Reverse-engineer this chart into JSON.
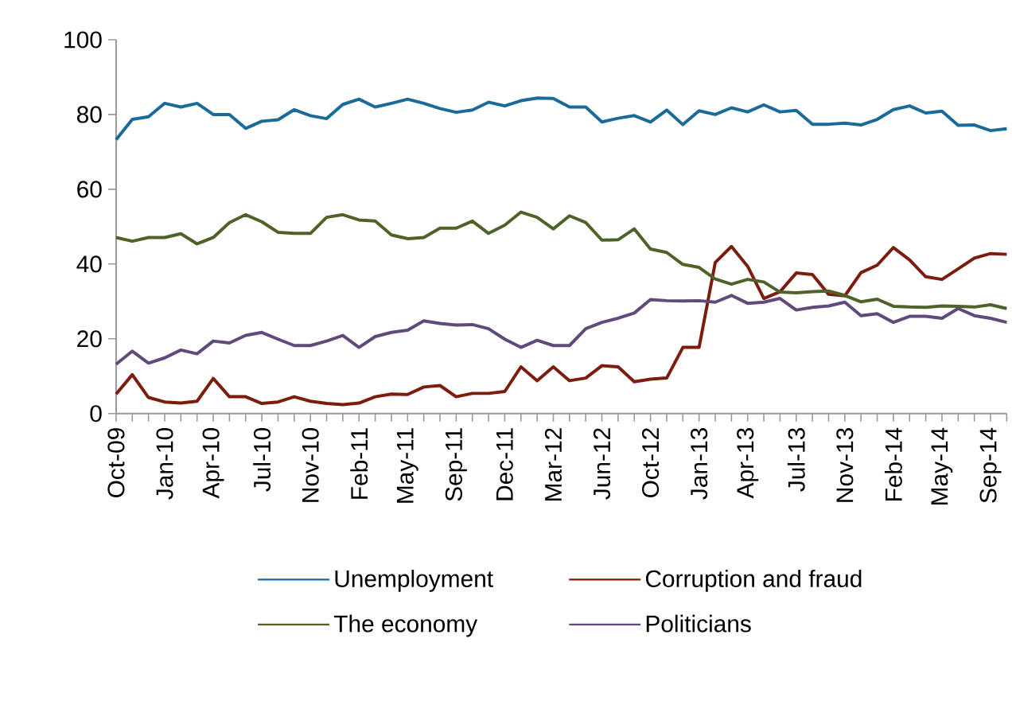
{
  "chart_data": {
    "type": "line",
    "categories": [
      "Oct-09",
      null,
      null,
      "Jan-10",
      null,
      null,
      "Apr-10",
      null,
      null,
      "Jul-10",
      null,
      null,
      "Nov-10",
      null,
      null,
      "Feb-11",
      null,
      null,
      "May-11",
      null,
      null,
      "Sep-11",
      null,
      null,
      "Dec-11",
      null,
      null,
      "Mar-12",
      null,
      null,
      "Jun-12",
      null,
      null,
      "Oct-12",
      null,
      null,
      "Jan-13",
      null,
      null,
      "Apr-13",
      null,
      null,
      "Jul-13",
      null,
      null,
      "Nov-13",
      null,
      null,
      "Feb-14",
      null,
      null,
      "May-14",
      null,
      null,
      "Sep-14",
      null
    ],
    "ylim": [
      0,
      100
    ],
    "yticks": [
      0,
      20,
      40,
      60,
      80,
      100
    ],
    "legend": "bottom",
    "series": [
      {
        "name": "Unemployment",
        "color": "#1a6a9a",
        "values": [
          73.3,
          78.7,
          79.4,
          83,
          82,
          83,
          80,
          80,
          76.3,
          78.2,
          78.6,
          81.3,
          79.7,
          78.9,
          82.7,
          84.1,
          82,
          83,
          84.1,
          83,
          81.6,
          80.6,
          81.2,
          83.3,
          82.3,
          83.7,
          84.4,
          84.3,
          82,
          82,
          78,
          79,
          79.7,
          78,
          81.2,
          77.3,
          81,
          80,
          81.8,
          80.7,
          82.6,
          80.7,
          81.1,
          77.4,
          77.4,
          77.7,
          77.2,
          78.7,
          81.3,
          82.3,
          80.4,
          80.9,
          77.1,
          77.2,
          75.7,
          76.2
        ]
      },
      {
        "name": "Corruption and fraud",
        "color": "#7b1c0c",
        "values": [
          5.2,
          10.4,
          4.3,
          3.1,
          2.8,
          3.3,
          9.4,
          4.5,
          4.5,
          2.7,
          3.1,
          4.5,
          3.3,
          2.7,
          2.4,
          2.8,
          4.5,
          5.2,
          5.1,
          7.1,
          7.5,
          4.5,
          5.4,
          5.4,
          5.9,
          12.5,
          8.8,
          12.5,
          8.8,
          9.5,
          12.8,
          12.5,
          8.5,
          9.2,
          9.5,
          17.7,
          17.7,
          40.4,
          44.7,
          39.4,
          30.8,
          32.6,
          37.6,
          37.2,
          31.9,
          31.5,
          37.7,
          39.7,
          44.4,
          41.1,
          36.6,
          35.9,
          38.7,
          41.6,
          42.8,
          42.6
        ]
      },
      {
        "name": "The economy",
        "color": "#4f6228",
        "values": [
          47.1,
          46.1,
          47.1,
          47.1,
          48.1,
          45.4,
          47.1,
          51.1,
          53.2,
          51.3,
          48.5,
          48.2,
          48.2,
          52.5,
          53.2,
          51.8,
          51.5,
          47.8,
          46.8,
          47.1,
          49.6,
          49.6,
          51.5,
          48.2,
          50.4,
          53.9,
          52.5,
          49.4,
          52.9,
          51.1,
          46.4,
          46.5,
          49.4,
          44,
          43.1,
          39.9,
          39.1,
          36,
          34.6,
          35.9,
          35.2,
          32.5,
          32.3,
          32.6,
          32.8,
          31.6,
          29.9,
          30.6,
          28.7,
          28.5,
          28.4,
          28.8,
          28.7,
          28.5,
          29.1,
          28.1
        ]
      },
      {
        "name": "Politicians",
        "color": "#604a7b",
        "values": [
          13.2,
          16.7,
          13.5,
          14.9,
          17,
          16,
          19.4,
          18.9,
          20.9,
          21.7,
          19.9,
          18.2,
          18.2,
          19.4,
          20.9,
          17.7,
          20.6,
          21.7,
          22.3,
          24.8,
          24.1,
          23.7,
          23.8,
          22.7,
          19.9,
          17.7,
          19.6,
          18.2,
          18.2,
          22.7,
          24.4,
          25.5,
          26.9,
          30.5,
          30.2,
          30.1,
          30.2,
          29.8,
          31.6,
          29.5,
          29.8,
          30.8,
          27.7,
          28.4,
          28.8,
          29.8,
          26.2,
          26.7,
          24.4,
          26,
          26,
          25.5,
          28.1,
          26.2,
          25.5,
          24.4
        ]
      }
    ]
  }
}
